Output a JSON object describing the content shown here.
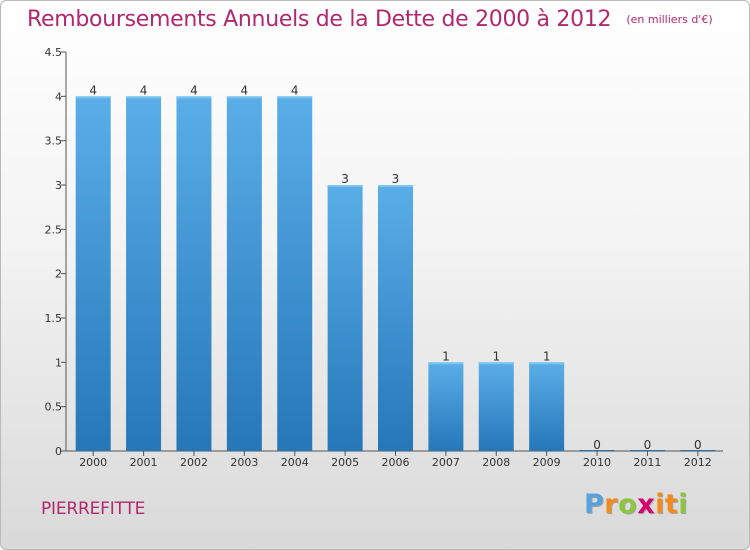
{
  "title": "Remboursements Annuels de la Dette de 2000 à 2012",
  "subtitle": "(en milliers d'€)",
  "commune": "PIERREFITTE",
  "logo": {
    "letters": [
      "P",
      "r",
      "o",
      "x",
      "i",
      "t",
      "i"
    ],
    "colors": [
      "#5aa0dc",
      "#f28a1c",
      "#8cc63f",
      "#d6006e",
      "#f28a1c",
      "#f28a1c",
      "#8cc63f"
    ]
  },
  "colors": {
    "bar_top": "#5aaee8",
    "bar_bottom": "#2577b8",
    "title": "#b2286e"
  },
  "chart_data": {
    "type": "bar",
    "categories": [
      "2000",
      "2001",
      "2002",
      "2003",
      "2004",
      "2005",
      "2006",
      "2007",
      "2008",
      "2009",
      "2010",
      "2011",
      "2012"
    ],
    "values": [
      4,
      4,
      4,
      4,
      4,
      3,
      3,
      1,
      1,
      1,
      0,
      0,
      0
    ],
    "data_labels": [
      "4",
      "4",
      "4",
      "4",
      "4",
      "3",
      "3",
      "1",
      "1",
      "1",
      "0",
      "0",
      "0"
    ],
    "yticks": [
      "0",
      "0.5",
      "1",
      "1.5",
      "2",
      "2.5",
      "3",
      "3.5",
      "4",
      "4.5"
    ],
    "ylim": [
      0,
      4.5
    ],
    "title": "Remboursements Annuels de la Dette de 2000 à 2012",
    "xlabel": "",
    "ylabel": "",
    "grid": false,
    "legend": "none"
  }
}
